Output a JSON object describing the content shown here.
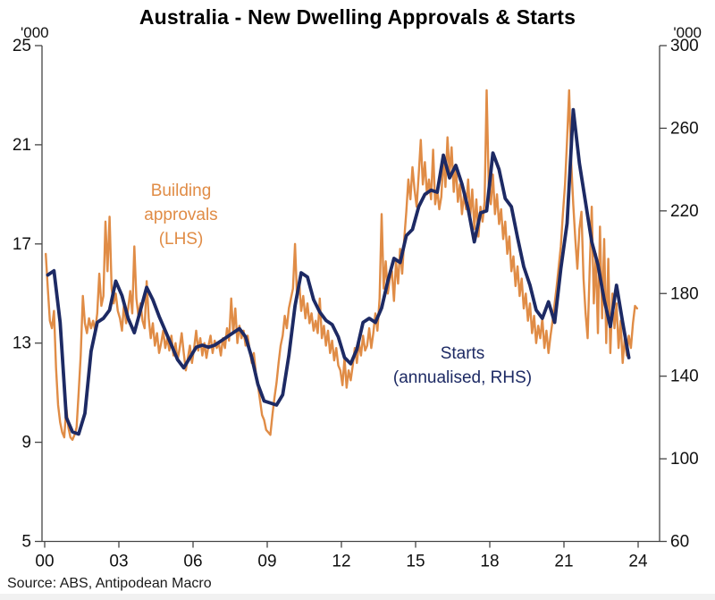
{
  "title": "Australia - New Dwelling Approvals & Starts",
  "left_axis": {
    "unit": "'000",
    "ticks": [
      25,
      21,
      17,
      13,
      9,
      5
    ]
  },
  "right_axis": {
    "unit": "'000",
    "ticks": [
      300,
      260,
      220,
      180,
      140,
      100,
      60
    ]
  },
  "x_axis": {
    "tick_labels": [
      "00",
      "03",
      "06",
      "09",
      "12",
      "15",
      "18",
      "21",
      "24"
    ],
    "tick_years": [
      2000,
      2003,
      2006,
      2009,
      2012,
      2015,
      2018,
      2021,
      2024
    ]
  },
  "annotations": {
    "approvals": {
      "lines": [
        "Building",
        "approvals",
        "(LHS)"
      ]
    },
    "starts": {
      "lines": [
        "Starts",
        "(annualised, RHS)"
      ]
    }
  },
  "source": "Source: ABS, Antipodean Macro",
  "colors": {
    "approvals": "#E08C46",
    "starts": "#1D2A64",
    "axis": "#444444",
    "text": "#111111"
  },
  "chart_data": {
    "type": "line",
    "title": "Australia - New Dwelling Approvals & Starts",
    "left_ylim": [
      5,
      25
    ],
    "right_ylim": [
      60,
      300
    ],
    "x_range_years": [
      2000,
      2025.1
    ],
    "grid": false,
    "legend_position": "inline-annotations",
    "series": [
      {
        "name": "Building approvals (LHS)",
        "axis": "left",
        "unit": "'000 per month",
        "frequency": "monthly",
        "start": "2000-01",
        "color": "#E08C46",
        "values": [
          16.6,
          15.2,
          13.9,
          13.6,
          14.3,
          12.0,
          10.5,
          9.8,
          9.4,
          9.2,
          10.4,
          9.6,
          9.2,
          9.1,
          9.3,
          9.6,
          11.0,
          12.5,
          14.9,
          13.8,
          13.4,
          14.0,
          13.6,
          13.9,
          13.5,
          14.2,
          15.8,
          14.5,
          14.9,
          17.9,
          15.9,
          18.1,
          15.2,
          14.6,
          15.0,
          14.3,
          14.0,
          13.5,
          14.6,
          13.8,
          14.4,
          15.1,
          14.2,
          16.9,
          14.8,
          14.1,
          14.6,
          13.9,
          13.6,
          15.5,
          14.0,
          13.2,
          13.8,
          12.9,
          13.4,
          12.6,
          13.0,
          13.5,
          12.8,
          13.2,
          12.7,
          13.3,
          12.5,
          13.0,
          12.3,
          12.8,
          13.4,
          12.6,
          11.9,
          12.4,
          12.9,
          12.2,
          12.8,
          13.5,
          12.7,
          13.2,
          12.5,
          13.0,
          12.4,
          12.9,
          13.3,
          12.6,
          13.1,
          12.8,
          13.0,
          12.5,
          13.2,
          12.8,
          13.6,
          13.1,
          14.8,
          13.4,
          14.4,
          13.0,
          13.7,
          13.2,
          13.5,
          12.9,
          13.3,
          12.7,
          12.2,
          12.6,
          11.8,
          11.3,
          10.7,
          10.1,
          9.9,
          9.5,
          9.4,
          9.3,
          10.1,
          10.8,
          11.4,
          12.2,
          12.9,
          13.3,
          14.1,
          13.6,
          14.4,
          14.8,
          15.2,
          17.0,
          14.8,
          15.5,
          14.3,
          14.9,
          14.0,
          14.6,
          13.8,
          14.2,
          13.5,
          13.9,
          13.4,
          14.8,
          13.2,
          13.7,
          12.9,
          13.5,
          12.6,
          13.1,
          12.3,
          12.8,
          12.1,
          11.9,
          11.3,
          12.4,
          11.2,
          11.9,
          11.5,
          12.1,
          12.8,
          12.2,
          13.0,
          12.5,
          13.3,
          12.7,
          12.9,
          13.6,
          12.8,
          13.4,
          14.2,
          13.5,
          14.8,
          18.2,
          15.2,
          16.3,
          15.0,
          15.6,
          15.9,
          14.7,
          16.3,
          15.4,
          16.8,
          15.8,
          17.2,
          18.3,
          19.6,
          18.8,
          20.1,
          19.2,
          18.5,
          19.8,
          21.2,
          19.4,
          20.3,
          19.0,
          19.6,
          18.8,
          20.8,
          18.6,
          19.2,
          18.4,
          18.9,
          20.5,
          19.3,
          21.3,
          19.8,
          20.9,
          19.1,
          20.2,
          18.7,
          19.4,
          18.2,
          19.0,
          18.4,
          19.6,
          18.1,
          19.2,
          17.6,
          18.8,
          17.3,
          18.5,
          17.9,
          18.7,
          23.2,
          19.4,
          18.6,
          19.8,
          18.2,
          19.0,
          17.8,
          18.4,
          17.2,
          17.9,
          16.6,
          17.3,
          15.9,
          16.5,
          15.3,
          16.1,
          14.9,
          15.6,
          14.4,
          15.0,
          13.9,
          14.6,
          13.4,
          14.1,
          13.0,
          13.7,
          13.2,
          14.0,
          12.8,
          13.5,
          12.6,
          13.3,
          13.9,
          14.6,
          15.3,
          16.1,
          16.9,
          18.2,
          19.4,
          21.2,
          23.2,
          20.3,
          18.6,
          17.2,
          16.0,
          17.6,
          18.3,
          15.6,
          14.2,
          13.2,
          16.0,
          18.5,
          14.6,
          16.6,
          13.4,
          17.7,
          14.0,
          17.2,
          13.0,
          16.4,
          12.6,
          15.0,
          13.6,
          14.6,
          12.8,
          13.9,
          12.2,
          13.2,
          12.5,
          13.3,
          12.8,
          13.8,
          14.5,
          14.4
        ]
      },
      {
        "name": "Starts (annualised, RHS)",
        "axis": "right",
        "unit": "'000 per year",
        "frequency": "quarterly",
        "start": "2000Q1",
        "color": "#1D2A64",
        "values": [
          189,
          191,
          166,
          120,
          113,
          112,
          122,
          152,
          166,
          168,
          172,
          186,
          179,
          168,
          161,
          172,
          183,
          177,
          169,
          162,
          155,
          148,
          144,
          149,
          154,
          155,
          154,
          155,
          157,
          159,
          161,
          163,
          159,
          149,
          136,
          128,
          127,
          126,
          131,
          150,
          174,
          190,
          188,
          177,
          171,
          167,
          165,
          159,
          149,
          146,
          153,
          166,
          168,
          166,
          173,
          186,
          197,
          195,
          208,
          211,
          222,
          228,
          230,
          229,
          247,
          236,
          242,
          233,
          221,
          205,
          219,
          220,
          248,
          240,
          226,
          222,
          207,
          193,
          184,
          172,
          168,
          176,
          166,
          192,
          214,
          269,
          243,
          224,
          205,
          194,
          177,
          164,
          184,
          166,
          149
        ]
      }
    ]
  }
}
